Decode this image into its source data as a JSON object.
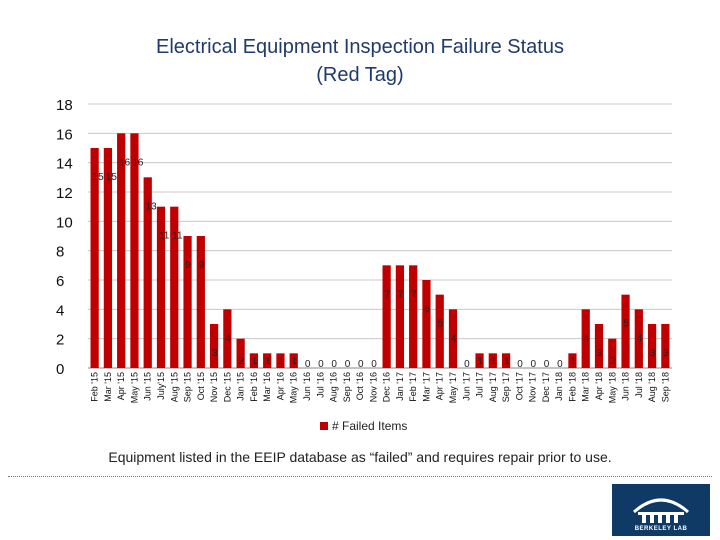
{
  "page": {
    "title_line1": "Electrical Equipment Inspection Failure Status",
    "title_line2": "(Red Tag)",
    "caption": "Equipment listed in the EEIP database as “failed” and requires repair prior to use.",
    "logo_text": "BERKELEY LAB"
  },
  "colors": {
    "bar": "#c00000",
    "title": "#1f3a6b",
    "grid": "#c8c8c8",
    "logo_bg": "#0f3a66"
  },
  "chart_data": {
    "type": "bar",
    "title": "Electrical Equipment Inspection Failure Status (Red Tag)",
    "xlabel": "",
    "ylabel": "",
    "ylim": [
      0,
      18
    ],
    "yticks": [
      0,
      2,
      4,
      6,
      8,
      10,
      12,
      14,
      16,
      18
    ],
    "legend": "# Failed Items",
    "legend_position": "bottom",
    "categories": [
      "Feb '15",
      "Mar '15",
      "Apr '15",
      "May '15",
      "Jun '15",
      "July'15",
      "Aug '15",
      "Sep '15",
      "Oct '15",
      "Nov '15",
      "Dec '15",
      "Jan '15",
      "Feb '16",
      "Mar '16",
      "Apr '16",
      "May '16",
      "Jun '16",
      "Jul '16",
      "Aug '16",
      "Sep '16",
      "Oct '16",
      "Nov '16",
      "Dec '16",
      "Jan '17",
      "Feb '17",
      "Mar '17",
      "Apr '17",
      "May '17",
      "Jun '17",
      "Jul '17",
      "Aug '17",
      "Sep '17",
      "Oct '17",
      "Nov '17",
      "Dec '17",
      "Jan '18",
      "Feb '18",
      "Mar '18",
      "Apr '18",
      "May '18",
      "Jun '18",
      "Jul '18",
      "Aug '18",
      "Sep '18"
    ],
    "series": [
      {
        "name": "# Failed Items",
        "values": [
          15,
          15,
          16,
          16,
          13,
          11,
          11,
          9,
          9,
          3,
          4,
          2,
          1,
          1,
          1,
          1,
          0,
          0,
          0,
          0,
          0,
          0,
          7,
          7,
          7,
          6,
          5,
          4,
          0,
          1,
          1,
          1,
          0,
          0,
          0,
          0,
          1,
          4,
          3,
          2,
          5,
          4,
          3,
          3
        ]
      }
    ]
  }
}
